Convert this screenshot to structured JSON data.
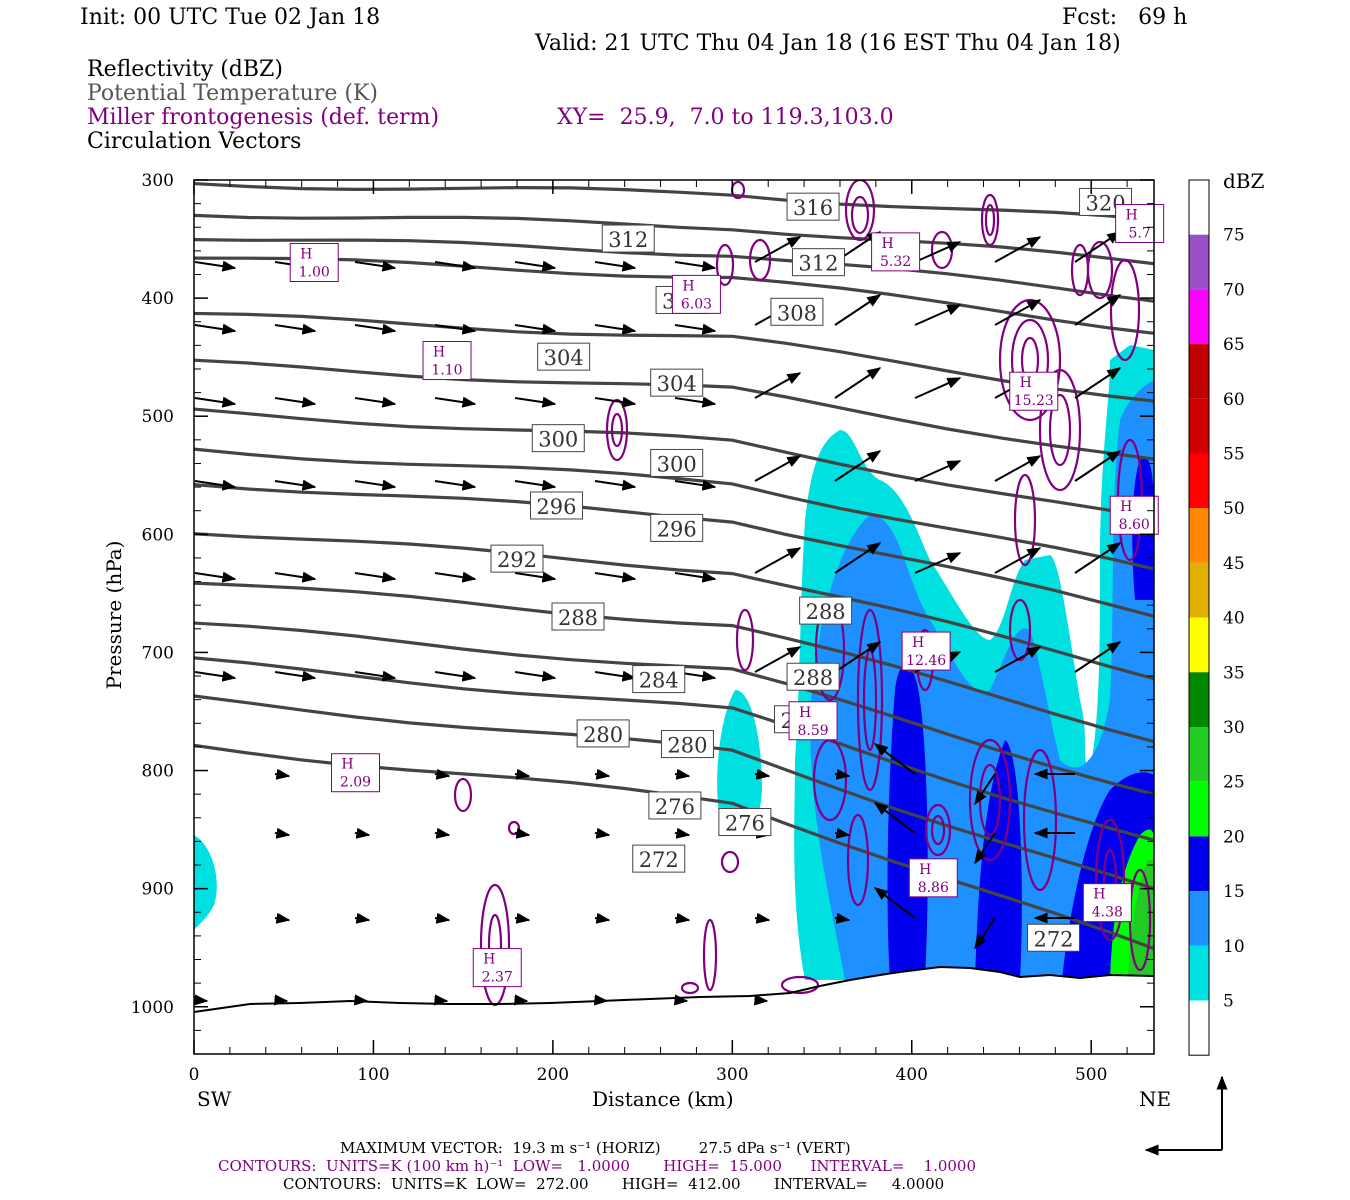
{
  "header": {
    "init": "Init: 00 UTC Tue 02 Jan 18",
    "fcst": "Fcst:   69 h",
    "valid": "Valid: 21 UTC Thu 04 Jan 18 (16 EST Thu 04 Jan 18)"
  },
  "legend": {
    "line1": "Reflectivity (dBZ)",
    "line2": "Potential Temperature (K)",
    "line3": "Miller frontogenesis (def. term)",
    "xy": "XY=  25.9,  7.0 to 119.3,103.0",
    "line4": "Circulation Vectors"
  },
  "colors": {
    "theta": "#444444",
    "frontogenesis": "#800080",
    "vectors": "#000000"
  },
  "colorbar": {
    "title": "dBZ",
    "levels": [
      "75",
      "70",
      "65",
      "60",
      "55",
      "50",
      "45",
      "40",
      "35",
      "30",
      "25",
      "20",
      "15",
      "10",
      "5"
    ],
    "colors": [
      "#ffffff",
      "#9a50c8",
      "#ff00ff",
      "#c00000",
      "#d00000",
      "#ff0000",
      "#ff8800",
      "#e0b000",
      "#ffff00",
      "#008800",
      "#22cc22",
      "#00ff00",
      "#0000ee",
      "#1e90ff",
      "#00e0e0",
      "#ffffff"
    ]
  },
  "footer": {
    "max_vector": "MAXIMUM VECTOR:  19.3 m s⁻¹ (HORIZ)        27.5 dPa s⁻¹ (VERT)",
    "contours1": "CONTOURS:  UNITS=K (100 km h)⁻¹  LOW=   1.0000       HIGH=  15.000      INTERVAL=    1.0000",
    "contours2": "CONTOURS:  UNITS=K  LOW=  272.00       HIGH=  412.00       INTERVAL=     4.0000"
  },
  "chart_data": {
    "type": "cross-section",
    "xlabel": "Distance (km)",
    "ylabel": "Pressure (hPa)",
    "x_left_label": "SW",
    "x_right_label": "NE",
    "xlim": [
      0,
      535
    ],
    "ylim": [
      1040,
      300
    ],
    "x_ticks": [
      0,
      100,
      200,
      300,
      400,
      500
    ],
    "y_ticks": [
      300,
      400,
      500,
      600,
      700,
      800,
      900,
      1000
    ],
    "theta_labels": [
      {
        "text": "316",
        "x": 345,
        "p": 323
      },
      {
        "text": "312",
        "x": 242,
        "p": 350
      },
      {
        "text": "312",
        "x": 348,
        "p": 370
      },
      {
        "text": "320",
        "x": 508,
        "p": 319
      },
      {
        "text": "308",
        "x": 272,
        "p": 402
      },
      {
        "text": "308",
        "x": 336,
        "p": 412
      },
      {
        "text": "304",
        "x": 206,
        "p": 450
      },
      {
        "text": "304",
        "x": 269,
        "p": 472
      },
      {
        "text": "300",
        "x": 203,
        "p": 519
      },
      {
        "text": "300",
        "x": 269,
        "p": 540
      },
      {
        "text": "296",
        "x": 202,
        "p": 576
      },
      {
        "text": "296",
        "x": 269,
        "p": 595
      },
      {
        "text": "292",
        "x": 180,
        "p": 621
      },
      {
        "text": "288",
        "x": 214,
        "p": 670
      },
      {
        "text": "288",
        "x": 352,
        "p": 665
      },
      {
        "text": "288",
        "x": 345,
        "p": 721
      },
      {
        "text": "284",
        "x": 259,
        "p": 723
      },
      {
        "text": "284",
        "x": 338,
        "p": 757
      },
      {
        "text": "280",
        "x": 228,
        "p": 769
      },
      {
        "text": "280",
        "x": 275,
        "p": 778
      },
      {
        "text": "276",
        "x": 268,
        "p": 830
      },
      {
        "text": "276",
        "x": 307,
        "p": 844
      },
      {
        "text": "272",
        "x": 259,
        "p": 875
      },
      {
        "text": "272",
        "x": 479,
        "p": 942
      }
    ],
    "frontogenesis_maxima": [
      {
        "label": "H",
        "value": "1.00",
        "x": 67,
        "p": 369
      },
      {
        "label": "H",
        "value": "1.10",
        "x": 141,
        "p": 452
      },
      {
        "label": "H",
        "value": "6.03",
        "x": 280,
        "p": 396
      },
      {
        "label": "H",
        "value": "5.32",
        "x": 391,
        "p": 360
      },
      {
        "label": "H",
        "value": "5.7",
        "x": 527,
        "p": 336
      },
      {
        "label": "H",
        "value": "15.23",
        "x": 468,
        "p": 478
      },
      {
        "label": "H",
        "value": "8.60",
        "x": 524,
        "p": 583
      },
      {
        "label": "H",
        "value": "12.46",
        "x": 408,
        "p": 698
      },
      {
        "label": "H",
        "value": "8.59",
        "x": 345,
        "p": 757
      },
      {
        "label": "H",
        "value": "2.09",
        "x": 90,
        "p": 801
      },
      {
        "label": "H",
        "value": "8.86",
        "x": 412,
        "p": 890
      },
      {
        "label": "H",
        "value": "4.38",
        "x": 509,
        "p": 911
      },
      {
        "label": "H",
        "value": "2.37",
        "x": 169,
        "p": 966
      }
    ]
  }
}
